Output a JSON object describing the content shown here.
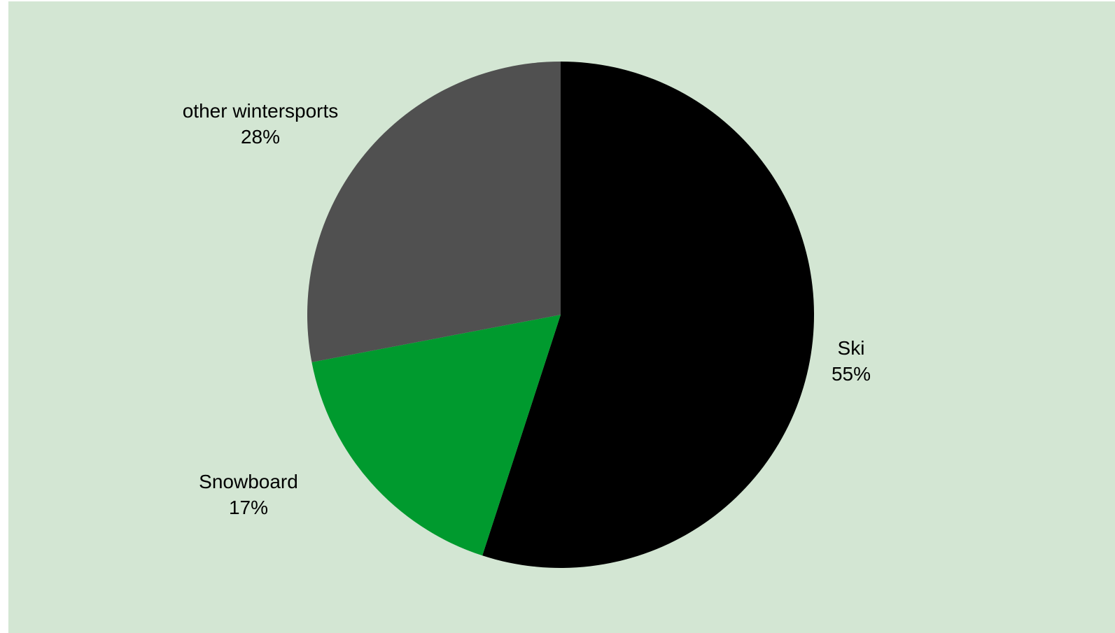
{
  "chart_data": {
    "type": "pie",
    "title": "",
    "background_color": "#d3e6d3",
    "slices": [
      {
        "label": "Ski",
        "value": 55,
        "percent_label": "55%",
        "color": "#000000"
      },
      {
        "label": "Snowboard",
        "value": 17,
        "percent_label": "17%",
        "color": "#009a2e"
      },
      {
        "label": "other wintersports",
        "value": 28,
        "percent_label": "28%",
        "color": "#505050"
      }
    ],
    "start_angle": "12 o'clock",
    "direction": "clockwise"
  }
}
